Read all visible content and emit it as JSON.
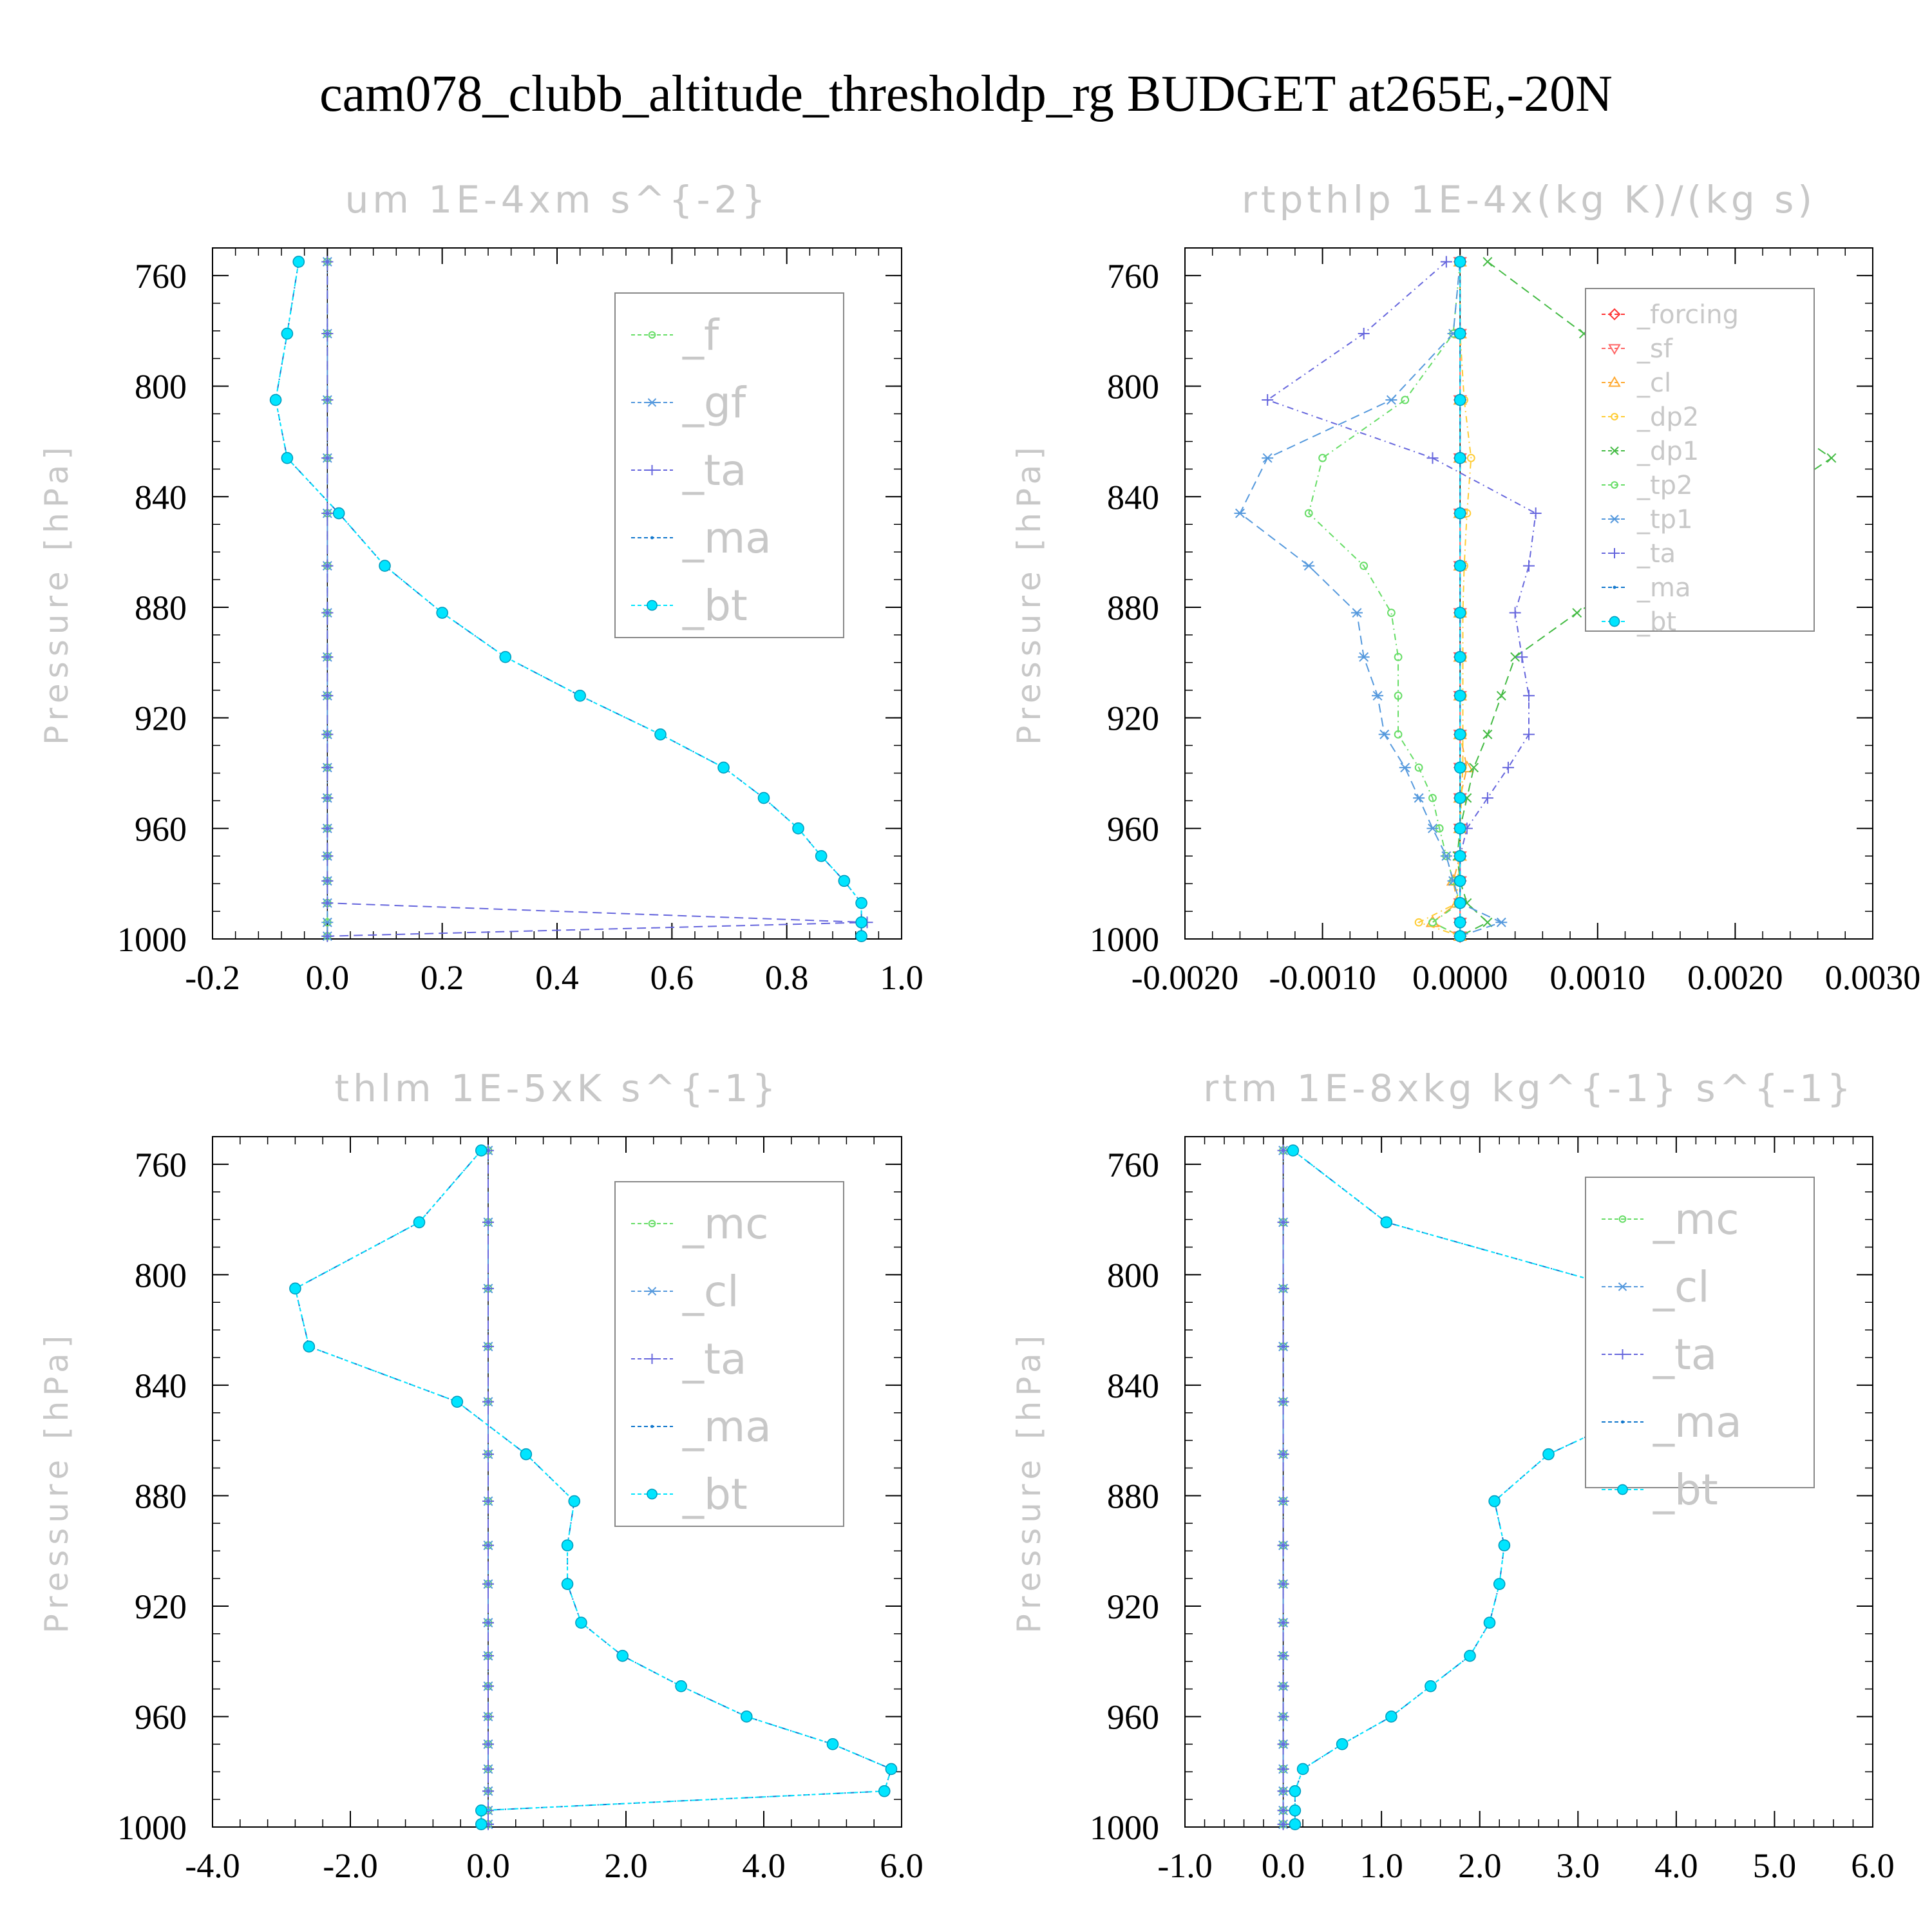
{
  "title": "cam078_clubb_altitude_thresholdp_rg  BUDGET at265E,-20N",
  "chart_data": [
    {
      "type": "line",
      "title": "um   1E-4xm s^{-2}",
      "ylabel": "Pressure [hPa]",
      "xlim": [
        -0.2,
        1.0
      ],
      "ylim": [
        1000,
        750
      ],
      "xticks": [
        -0.2,
        0.0,
        0.2,
        0.4,
        0.6,
        0.8,
        1.0
      ],
      "xtick_labels": [
        "-0.2",
        "0.0",
        "0.2",
        "0.4",
        "0.6",
        "0.8",
        "1.0"
      ],
      "yticks": [
        760,
        800,
        840,
        880,
        920,
        960,
        1000
      ],
      "legend": "top-right",
      "grid": false,
      "pressure": [
        755,
        781,
        805,
        826,
        846,
        865,
        882,
        898,
        912,
        926,
        938,
        949,
        960,
        970,
        979,
        987,
        994,
        999
      ],
      "series": [
        {
          "name": "_f",
          "color": "#66dd66",
          "marker": "circle",
          "values": [
            0,
            0,
            0,
            0,
            0,
            0,
            0,
            0,
            0,
            0,
            0,
            0,
            0,
            0,
            0,
            0,
            0,
            0
          ]
        },
        {
          "name": "_gf",
          "color": "#5599dd",
          "marker": "star",
          "values": [
            0,
            0,
            0,
            0,
            0,
            0,
            0,
            0,
            0,
            0,
            0,
            0,
            0,
            0,
            0,
            0,
            0,
            0
          ]
        },
        {
          "name": "_ta",
          "color": "#6666dd",
          "marker": "plus",
          "values": [
            0,
            0,
            0,
            0,
            0,
            0,
            0,
            0,
            0,
            0,
            0,
            0,
            0,
            0,
            0,
            0,
            0.94,
            0
          ]
        },
        {
          "name": "_ma",
          "color": "#1177cc",
          "marker": "dot",
          "values": [
            -0.05,
            -0.07,
            -0.09,
            -0.07,
            0.02,
            0.1,
            0.2,
            0.31,
            0.44,
            0.58,
            0.69,
            0.76,
            0.82,
            0.86,
            0.9,
            0.93,
            0.93,
            0.93
          ]
        },
        {
          "name": "_bt",
          "color": "#00e5ff",
          "marker": "filled",
          "values": [
            -0.05,
            -0.07,
            -0.09,
            -0.07,
            0.02,
            0.1,
            0.2,
            0.31,
            0.44,
            0.58,
            0.69,
            0.76,
            0.82,
            0.86,
            0.9,
            0.93,
            0.93,
            0.93
          ]
        }
      ]
    },
    {
      "type": "line",
      "title": "rtpthlp   1E-4x(kg K)/(kg s)",
      "ylabel": "Pressure [hPa]",
      "xlim": [
        -0.002,
        0.003
      ],
      "ylim": [
        1000,
        750
      ],
      "xticks": [
        -0.002,
        -0.001,
        0.0,
        0.001,
        0.002,
        0.003
      ],
      "xtick_labels": [
        "-0.0020",
        "-0.0010",
        "0.0000",
        "0.0010",
        "0.0020",
        "0.0030"
      ],
      "yticks": [
        760,
        800,
        840,
        880,
        920,
        960,
        1000
      ],
      "legend": "top-right",
      "grid": false,
      "pressure": [
        755,
        781,
        805,
        826,
        846,
        865,
        882,
        898,
        912,
        926,
        938,
        949,
        960,
        970,
        979,
        987,
        994,
        999
      ],
      "series": [
        {
          "name": "_forcing",
          "color": "#ff3333",
          "marker": "diamond",
          "values": [
            0,
            0,
            0,
            0,
            0,
            0,
            0,
            0,
            0,
            0,
            0,
            0,
            0,
            0,
            0,
            0,
            0,
            0
          ]
        },
        {
          "name": "_sf",
          "color": "#ff6666",
          "marker": "triangle-down",
          "values": [
            0,
            0,
            0,
            0,
            0,
            0,
            0,
            0,
            0,
            0,
            0,
            0,
            0,
            0,
            0,
            0,
            0,
            0
          ]
        },
        {
          "name": "_cl",
          "color": "#ffaa33",
          "marker": "triangle",
          "values": [
            0,
            0,
            0,
            0,
            0,
            0,
            0,
            0,
            0,
            0,
            5e-05,
            0,
            0,
            0,
            -5e-05,
            -2e-05,
            -0.0002,
            0
          ]
        },
        {
          "name": "_dp2",
          "color": "#ffcc33",
          "marker": "circle",
          "values": [
            0,
            0,
            3e-05,
            8e-05,
            5e-05,
            3e-05,
            2e-05,
            2e-05,
            2e-05,
            2e-05,
            2e-05,
            1e-05,
            0,
            0,
            -2e-05,
            -2e-05,
            -0.0003,
            0
          ]
        },
        {
          "name": "_dp1",
          "color": "#44bb44",
          "marker": "x",
          "values": [
            0.0002,
            0.0009,
            0.0021,
            0.0027,
            0.0021,
            0.0014,
            0.00085,
            0.0004,
            0.0003,
            0.0002,
            0.0001,
            5e-05,
            0,
            -2e-05,
            0,
            5e-05,
            0.0002,
            0
          ]
        },
        {
          "name": "_tp2",
          "color": "#66dd66",
          "marker": "circle",
          "values": [
            0,
            -5e-05,
            -0.0004,
            -0.001,
            -0.0011,
            -0.0007,
            -0.0005,
            -0.00045,
            -0.00045,
            -0.00045,
            -0.0003,
            -0.0002,
            -0.00015,
            -0.0001,
            -5e-05,
            0,
            -0.0002,
            0
          ]
        },
        {
          "name": "_tp1",
          "color": "#5599dd",
          "marker": "star",
          "values": [
            0,
            -5e-05,
            -0.0005,
            -0.0014,
            -0.0016,
            -0.0011,
            -0.00075,
            -0.0007,
            -0.0006,
            -0.00055,
            -0.0004,
            -0.0003,
            -0.0002,
            -0.0001,
            -5e-05,
            0,
            0.0003,
            0
          ]
        },
        {
          "name": "_ta",
          "color": "#6666dd",
          "marker": "plus",
          "values": [
            -0.0001,
            -0.0007,
            -0.0014,
            -0.0002,
            0.00055,
            0.0005,
            0.0004,
            0.00045,
            0.0005,
            0.0005,
            0.00035,
            0.0002,
            5e-05,
            0,
            0,
            0,
            0,
            0
          ]
        },
        {
          "name": "_ma",
          "color": "#1177cc",
          "marker": "dot",
          "values": [
            0,
            0,
            0,
            0,
            0,
            0,
            0,
            0,
            0,
            0,
            0,
            0,
            0,
            0,
            0,
            0,
            0,
            0
          ]
        },
        {
          "name": "_bt",
          "color": "#00e5ff",
          "marker": "filled",
          "values": [
            0,
            0,
            0,
            0,
            0,
            0,
            0,
            0,
            0,
            0,
            0,
            0,
            0,
            0,
            0,
            0,
            0,
            0
          ]
        }
      ]
    },
    {
      "type": "line",
      "title": "thlm   1E-5xK s^{-1}",
      "ylabel": "Pressure [hPa]",
      "xlim": [
        -4.0,
        6.0
      ],
      "ylim": [
        1000,
        750
      ],
      "xticks": [
        -4.0,
        -2.0,
        0.0,
        2.0,
        4.0,
        6.0
      ],
      "xtick_labels": [
        "-4.0",
        "-2.0",
        "0.0",
        "2.0",
        "4.0",
        "6.0"
      ],
      "yticks": [
        760,
        800,
        840,
        880,
        920,
        960,
        1000
      ],
      "legend": "top-right",
      "grid": false,
      "pressure": [
        755,
        781,
        805,
        826,
        846,
        865,
        882,
        898,
        912,
        926,
        938,
        949,
        960,
        970,
        979,
        987,
        994,
        999
      ],
      "series": [
        {
          "name": "_mc",
          "color": "#66dd66",
          "marker": "circle",
          "values": [
            0,
            0,
            0,
            0,
            0,
            0,
            0,
            0,
            0,
            0,
            0,
            0,
            0,
            0,
            0,
            0,
            0,
            0
          ]
        },
        {
          "name": "_cl",
          "color": "#5599dd",
          "marker": "star",
          "values": [
            0,
            0,
            0,
            0,
            0,
            0,
            0,
            0,
            0,
            0,
            0,
            0,
            0,
            0,
            0,
            0,
            0,
            0
          ]
        },
        {
          "name": "_ta",
          "color": "#6666dd",
          "marker": "plus",
          "values": [
            0,
            0,
            0,
            0,
            0,
            0,
            0,
            0,
            0,
            0,
            0,
            0,
            0,
            0,
            0,
            0,
            0,
            0
          ]
        },
        {
          "name": "_ma",
          "color": "#1177cc",
          "marker": "dot",
          "values": [
            -0.1,
            -1.0,
            -2.8,
            -2.6,
            -0.45,
            0.55,
            1.25,
            1.15,
            1.15,
            1.35,
            1.95,
            2.8,
            3.75,
            5.0,
            5.85,
            5.75,
            -0.1,
            -0.1
          ]
        },
        {
          "name": "_bt",
          "color": "#00e5ff",
          "marker": "filled",
          "values": [
            -0.1,
            -1.0,
            -2.8,
            -2.6,
            -0.45,
            0.55,
            1.25,
            1.15,
            1.15,
            1.35,
            1.95,
            2.8,
            3.75,
            5.0,
            5.85,
            5.75,
            -0.1,
            -0.1
          ]
        }
      ]
    },
    {
      "type": "line",
      "title": "rtm   1E-8xkg kg^{-1} s^{-1}",
      "ylabel": "Pressure [hPa]",
      "xlim": [
        -1.0,
        6.0
      ],
      "ylim": [
        1000,
        750
      ],
      "xticks": [
        -1.0,
        0.0,
        1.0,
        2.0,
        3.0,
        4.0,
        5.0,
        6.0
      ],
      "xtick_labels": [
        "-1.0",
        "0.0",
        "1.0",
        "2.0",
        "3.0",
        "4.0",
        "5.0",
        "6.0"
      ],
      "yticks": [
        760,
        800,
        840,
        880,
        920,
        960,
        1000
      ],
      "legend": "top-right",
      "grid": false,
      "pressure": [
        755,
        781,
        805,
        826,
        846,
        865,
        882,
        898,
        912,
        926,
        938,
        949,
        960,
        970,
        979,
        987,
        994,
        999
      ],
      "series": [
        {
          "name": "_mc",
          "color": "#66dd66",
          "marker": "circle",
          "values": [
            0,
            0,
            0,
            0,
            0,
            0,
            0,
            0,
            0,
            0,
            0,
            0,
            0,
            0,
            0,
            0,
            0,
            0
          ]
        },
        {
          "name": "_cl",
          "color": "#5599dd",
          "marker": "star",
          "values": [
            0,
            0,
            0,
            0,
            0,
            0,
            0,
            0,
            0,
            0,
            0,
            0,
            0,
            0,
            0,
            0,
            0,
            0
          ]
        },
        {
          "name": "_ta",
          "color": "#6666dd",
          "marker": "plus",
          "values": [
            0,
            0,
            0,
            0,
            0,
            0,
            0,
            0,
            0,
            0,
            0,
            0,
            0,
            0,
            0,
            0,
            0,
            0
          ]
        },
        {
          "name": "_ma",
          "color": "#1177cc",
          "marker": "dot",
          "values": [
            0.1,
            1.05,
            3.45,
            5.15,
            3.85,
            2.7,
            2.15,
            2.25,
            2.2,
            2.1,
            1.9,
            1.5,
            1.1,
            0.6,
            0.2,
            0.12,
            0.12,
            0.12
          ]
        },
        {
          "name": "_bt",
          "color": "#00e5ff",
          "marker": "filled",
          "values": [
            0.1,
            1.05,
            3.45,
            5.15,
            3.85,
            2.7,
            2.15,
            2.25,
            2.2,
            2.1,
            1.9,
            1.5,
            1.1,
            0.6,
            0.2,
            0.12,
            0.12,
            0.12
          ]
        }
      ]
    }
  ]
}
